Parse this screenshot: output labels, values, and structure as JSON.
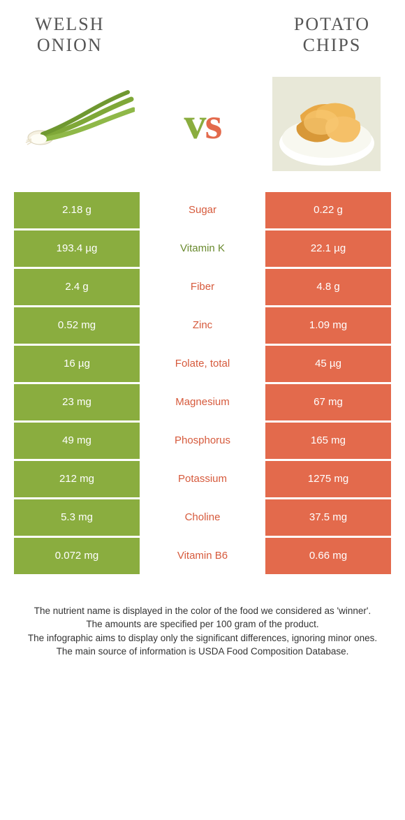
{
  "left": {
    "title": "Welsh\nonion"
  },
  "right": {
    "title": "Potato\nchips"
  },
  "vs": "vs",
  "colors": {
    "green": "#8aad3f",
    "orange": "#e36a4c",
    "greenText": "#6a8a2f",
    "orangeText": "#d65a3c"
  },
  "rows": [
    {
      "left": "2.18 g",
      "label": "Sugar",
      "right": "0.22 g",
      "winner": "orange"
    },
    {
      "left": "193.4 µg",
      "label": "Vitamin K",
      "right": "22.1 µg",
      "winner": "green"
    },
    {
      "left": "2.4 g",
      "label": "Fiber",
      "right": "4.8 g",
      "winner": "orange"
    },
    {
      "left": "0.52 mg",
      "label": "Zinc",
      "right": "1.09 mg",
      "winner": "orange"
    },
    {
      "left": "16 µg",
      "label": "Folate, total",
      "right": "45 µg",
      "winner": "orange"
    },
    {
      "left": "23 mg",
      "label": "Magnesium",
      "right": "67 mg",
      "winner": "orange"
    },
    {
      "left": "49 mg",
      "label": "Phosphorus",
      "right": "165 mg",
      "winner": "orange"
    },
    {
      "left": "212 mg",
      "label": "Potassium",
      "right": "1275 mg",
      "winner": "orange"
    },
    {
      "left": "5.3 mg",
      "label": "Choline",
      "right": "37.5 mg",
      "winner": "orange"
    },
    {
      "left": "0.072 mg",
      "label": "Vitamin B6",
      "right": "0.66 mg",
      "winner": "orange"
    }
  ],
  "footer": {
    "l1": "The nutrient name is displayed in the color of the food we considered as 'winner'.",
    "l2": "The amounts are specified per 100 gram of the product.",
    "l3": "The infographic aims to display only the significant differences, ignoring minor ones.",
    "l4": "The main source of information is USDA Food Composition Database."
  }
}
